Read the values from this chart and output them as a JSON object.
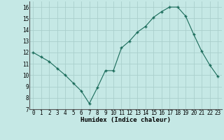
{
  "x": [
    0,
    1,
    2,
    3,
    4,
    5,
    6,
    7,
    8,
    9,
    10,
    11,
    12,
    13,
    14,
    15,
    16,
    17,
    18,
    19,
    20,
    21,
    22,
    23
  ],
  "y": [
    12.0,
    11.6,
    11.2,
    10.6,
    10.0,
    9.3,
    8.6,
    7.5,
    8.9,
    10.4,
    10.4,
    12.4,
    13.0,
    13.8,
    14.3,
    15.1,
    15.6,
    16.0,
    16.0,
    15.2,
    13.6,
    12.1,
    10.9,
    9.9
  ],
  "line_color": "#1a6b5a",
  "marker": "+",
  "bg_color": "#c5e8e5",
  "grid_color": "#aacfcc",
  "xlabel": "Humidex (Indice chaleur)",
  "ylim": [
    7,
    16.5
  ],
  "yticks": [
    7,
    8,
    9,
    10,
    11,
    12,
    13,
    14,
    15,
    16
  ],
  "xticks": [
    0,
    1,
    2,
    3,
    4,
    5,
    6,
    7,
    8,
    9,
    10,
    11,
    12,
    13,
    14,
    15,
    16,
    17,
    18,
    19,
    20,
    21,
    22,
    23
  ],
  "xlim": [
    -0.5,
    23.5
  ],
  "tick_fontsize": 5.5,
  "xlabel_fontsize": 6.5
}
